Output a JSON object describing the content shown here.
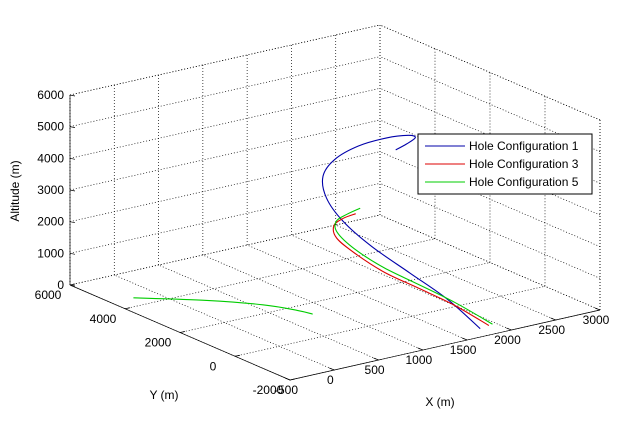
{
  "chart_data": {
    "type": "line",
    "projection": "3d",
    "xlabel": "X (m)",
    "ylabel": "Y (m)",
    "zlabel": "Altitude (m)",
    "xlim": [
      -500,
      3000
    ],
    "ylim": [
      -2000,
      6000
    ],
    "zlim": [
      0,
      6000
    ],
    "x_ticks": [
      -500,
      0,
      500,
      1000,
      1500,
      2000,
      2500,
      3000
    ],
    "y_ticks": [
      -2000,
      0,
      2000,
      4000,
      6000
    ],
    "z_ticks": [
      0,
      1000,
      2000,
      3000,
      4000,
      5000,
      6000
    ],
    "grid": true,
    "legend_position": "right",
    "series": [
      {
        "name": "Hole Configuration 1",
        "color": "#0000aa",
        "points": [
          [
            1790,
            -1540,
            0
          ],
          [
            1590,
            -1000,
            850
          ],
          [
            1410,
            -200,
            1500
          ],
          [
            1290,
            800,
            2040
          ],
          [
            1280,
            1800,
            2460
          ],
          [
            1370,
            2700,
            2810
          ],
          [
            1540,
            3370,
            3130
          ],
          [
            1760,
            3650,
            3420
          ],
          [
            1980,
            3500,
            3760
          ],
          [
            2100,
            2860,
            4180
          ],
          [
            2040,
            1870,
            4670
          ],
          [
            1790,
            820,
            5150
          ],
          [
            1460,
            70,
            5440
          ],
          [
            1200,
            -370,
            5580
          ]
        ]
      },
      {
        "name": "Hole Configuration 3",
        "color": "#dd0000",
        "points": [
          [
            1910,
            -1470,
            0
          ],
          [
            1720,
            -820,
            520
          ],
          [
            1540,
            -120,
            900
          ],
          [
            1380,
            600,
            1230
          ],
          [
            1270,
            1300,
            1620
          ],
          [
            1190,
            1750,
            2010
          ],
          [
            1160,
            1750,
            2420
          ],
          [
            1170,
            1440,
            2760
          ],
          [
            1210,
            1120,
            3000
          ]
        ]
      },
      {
        "name": "Hole Configuration 5",
        "color": "#00cc00",
        "points": [
          [
            1960,
            -1440,
            0
          ],
          [
            1750,
            -740,
            560
          ],
          [
            1560,
            -40,
            980
          ],
          [
            1390,
            660,
            1350
          ],
          [
            1270,
            1340,
            1760
          ],
          [
            1200,
            1760,
            2180
          ],
          [
            1170,
            1700,
            2570
          ],
          [
            1180,
            1340,
            2920
          ],
          [
            1230,
            1020,
            3200
          ]
        ]
      },
      {
        "name": "",
        "color": "#00cc00",
        "points": [
          [
            -250,
            4500,
            0
          ],
          [
            250,
            3440,
            0
          ],
          [
            590,
            2500,
            0
          ],
          [
            750,
            1760,
            0
          ],
          [
            800,
            1360,
            0
          ]
        ]
      }
    ]
  }
}
